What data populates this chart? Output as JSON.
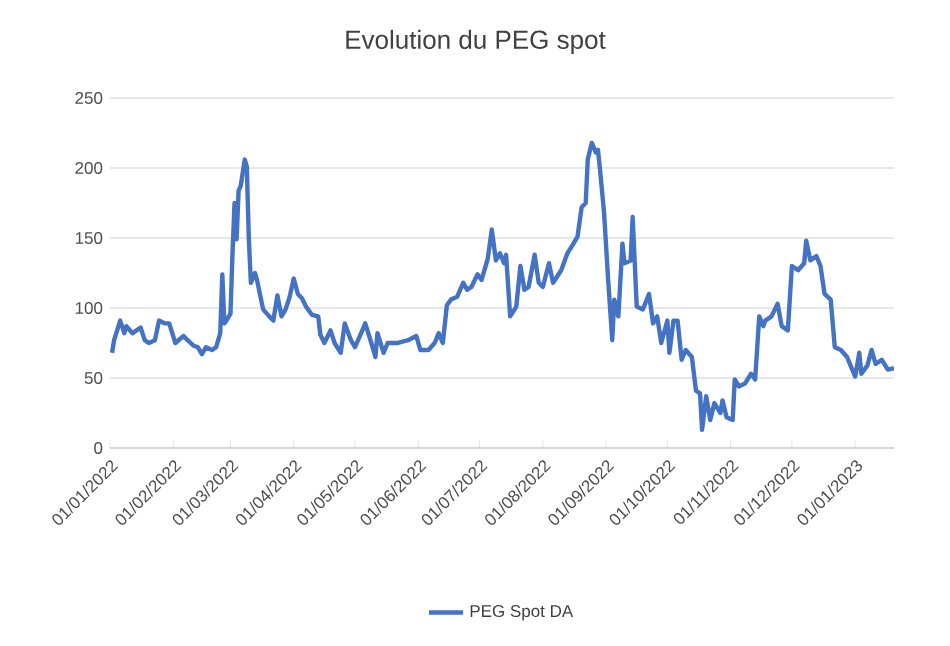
{
  "chart_data": {
    "type": "line",
    "title": "Evolution du PEG spot",
    "x": [
      "2022-01-02",
      "2022-01-03",
      "2022-01-06",
      "2022-01-08",
      "2022-01-09",
      "2022-01-12",
      "2022-01-14",
      "2022-01-16",
      "2022-01-18",
      "2022-01-20",
      "2022-01-23",
      "2022-01-25",
      "2022-01-28",
      "2022-01-30",
      "2022-02-02",
      "2022-02-06",
      "2022-02-08",
      "2022-02-11",
      "2022-02-13",
      "2022-02-15",
      "2022-02-17",
      "2022-02-20",
      "2022-02-22",
      "2022-02-24",
      "2022-02-25",
      "2022-02-26",
      "2022-02-27",
      "2022-03-01",
      "2022-03-02",
      "2022-03-03",
      "2022-03-04",
      "2022-03-05",
      "2022-03-06",
      "2022-03-08",
      "2022-03-09",
      "2022-03-10",
      "2022-03-11",
      "2022-03-13",
      "2022-03-14",
      "2022-03-17",
      "2022-03-20",
      "2022-03-22",
      "2022-03-24",
      "2022-03-26",
      "2022-03-28",
      "2022-03-30",
      "2022-04-01",
      "2022-04-03",
      "2022-04-05",
      "2022-04-07",
      "2022-04-10",
      "2022-04-13",
      "2022-04-14",
      "2022-04-16",
      "2022-04-19",
      "2022-04-21",
      "2022-04-24",
      "2022-04-26",
      "2022-04-29",
      "2022-05-01",
      "2022-05-04",
      "2022-05-06",
      "2022-05-09",
      "2022-05-11",
      "2022-05-12",
      "2022-05-15",
      "2022-05-17",
      "2022-05-22",
      "2022-05-27",
      "2022-05-31",
      "2022-06-02",
      "2022-06-06",
      "2022-06-09",
      "2022-06-11",
      "2022-06-13",
      "2022-06-15",
      "2022-06-17",
      "2022-06-20",
      "2022-06-23",
      "2022-06-25",
      "2022-06-27",
      "2022-06-30",
      "2022-07-02",
      "2022-07-05",
      "2022-07-07",
      "2022-07-09",
      "2022-07-11",
      "2022-07-13",
      "2022-07-14",
      "2022-07-16",
      "2022-07-19",
      "2022-07-21",
      "2022-07-23",
      "2022-07-25",
      "2022-07-28",
      "2022-07-30",
      "2022-08-01",
      "2022-08-04",
      "2022-08-06",
      "2022-08-10",
      "2022-08-13",
      "2022-08-16",
      "2022-08-18",
      "2022-08-20",
      "2022-08-22",
      "2022-08-23",
      "2022-08-25",
      "2022-08-27",
      "2022-08-28",
      "2022-08-29",
      "2022-08-31",
      "2022-09-02",
      "2022-09-04",
      "2022-09-05",
      "2022-09-07",
      "2022-09-09",
      "2022-09-10",
      "2022-09-13",
      "2022-09-14",
      "2022-09-16",
      "2022-09-19",
      "2022-09-22",
      "2022-09-24",
      "2022-09-26",
      "2022-09-28",
      "2022-10-01",
      "2022-10-02",
      "2022-10-04",
      "2022-10-06",
      "2022-10-08",
      "2022-10-10",
      "2022-10-13",
      "2022-10-15",
      "2022-10-17",
      "2022-10-18",
      "2022-10-20",
      "2022-10-22",
      "2022-10-24",
      "2022-10-27",
      "2022-10-28",
      "2022-10-30",
      "2022-11-02",
      "2022-11-03",
      "2022-11-05",
      "2022-11-08",
      "2022-11-11",
      "2022-11-13",
      "2022-11-15",
      "2022-11-17",
      "2022-11-18",
      "2022-11-21",
      "2022-11-24",
      "2022-11-26",
      "2022-11-29",
      "2022-12-01",
      "2022-12-04",
      "2022-12-07",
      "2022-12-08",
      "2022-12-10",
      "2022-12-13",
      "2022-12-15",
      "2022-12-17",
      "2022-12-20",
      "2022-12-22",
      "2022-12-25",
      "2022-12-28",
      "2022-12-30",
      "2023-01-01",
      "2023-01-03",
      "2023-01-04",
      "2023-01-07",
      "2023-01-09",
      "2023-01-11",
      "2023-01-14",
      "2023-01-17",
      "2023-01-20"
    ],
    "series": [
      {
        "name": "PEG Spot DA",
        "color": "#4472c4",
        "values": [
          68,
          77,
          91,
          82,
          87,
          82,
          84,
          86,
          77,
          75,
          77,
          91,
          89,
          89,
          75,
          80,
          77,
          73,
          72,
          67,
          72,
          70,
          72,
          82,
          124,
          89,
          91,
          96,
          139,
          175,
          149,
          184,
          187,
          206,
          201,
          149,
          118,
          125,
          120,
          99,
          94,
          91,
          109,
          94,
          99,
          108,
          121,
          110,
          107,
          101,
          95,
          94,
          81,
          75,
          84,
          75,
          68,
          89,
          77,
          72,
          82,
          89,
          75,
          65,
          82,
          68,
          75,
          75,
          77,
          80,
          70,
          70,
          75,
          82,
          75,
          102,
          106,
          108,
          118,
          113,
          115,
          124,
          120,
          135,
          156,
          134,
          139,
          132,
          138,
          94,
          101,
          130,
          113,
          115,
          138,
          118,
          115,
          132,
          118,
          127,
          139,
          146,
          151,
          172,
          175,
          206,
          218,
          211,
          213,
          199,
          168,
          120,
          77,
          106,
          94,
          146,
          132,
          134,
          165,
          101,
          99,
          110,
          89,
          94,
          75,
          91,
          68,
          91,
          91,
          63,
          70,
          65,
          41,
          39,
          13,
          37,
          20,
          32,
          25,
          34,
          22,
          20,
          49,
          44,
          46,
          53,
          49,
          94,
          87,
          91,
          94,
          103,
          87,
          84,
          130,
          127,
          132,
          148,
          134,
          137,
          130,
          110,
          106,
          72,
          70,
          65,
          58,
          51,
          68,
          53,
          59,
          70,
          60,
          63,
          56,
          57
        ]
      }
    ],
    "xlim": [
      "2022-01-01",
      "2023-01-20"
    ],
    "xticks": [
      {
        "value": "2022-01-01",
        "label": "01/01/2022"
      },
      {
        "value": "2022-02-01",
        "label": "01/02/2022"
      },
      {
        "value": "2022-03-01",
        "label": "01/03/2022"
      },
      {
        "value": "2022-04-01",
        "label": "01/04/2022"
      },
      {
        "value": "2022-05-01",
        "label": "01/05/2022"
      },
      {
        "value": "2022-06-01",
        "label": "01/06/2022"
      },
      {
        "value": "2022-07-01",
        "label": "01/07/2022"
      },
      {
        "value": "2022-08-01",
        "label": "01/08/2022"
      },
      {
        "value": "2022-09-01",
        "label": "01/09/2022"
      },
      {
        "value": "2022-10-01",
        "label": "01/10/2022"
      },
      {
        "value": "2022-11-01",
        "label": "01/11/2022"
      },
      {
        "value": "2022-12-01",
        "label": "01/12/2022"
      },
      {
        "value": "2023-01-01",
        "label": "01/01/2023"
      }
    ],
    "ylim": [
      0,
      250
    ],
    "yticks": [
      0,
      50,
      100,
      150,
      200,
      250
    ],
    "grid": "y",
    "legend": "bottom",
    "marker": "none",
    "line_style": "solid"
  }
}
